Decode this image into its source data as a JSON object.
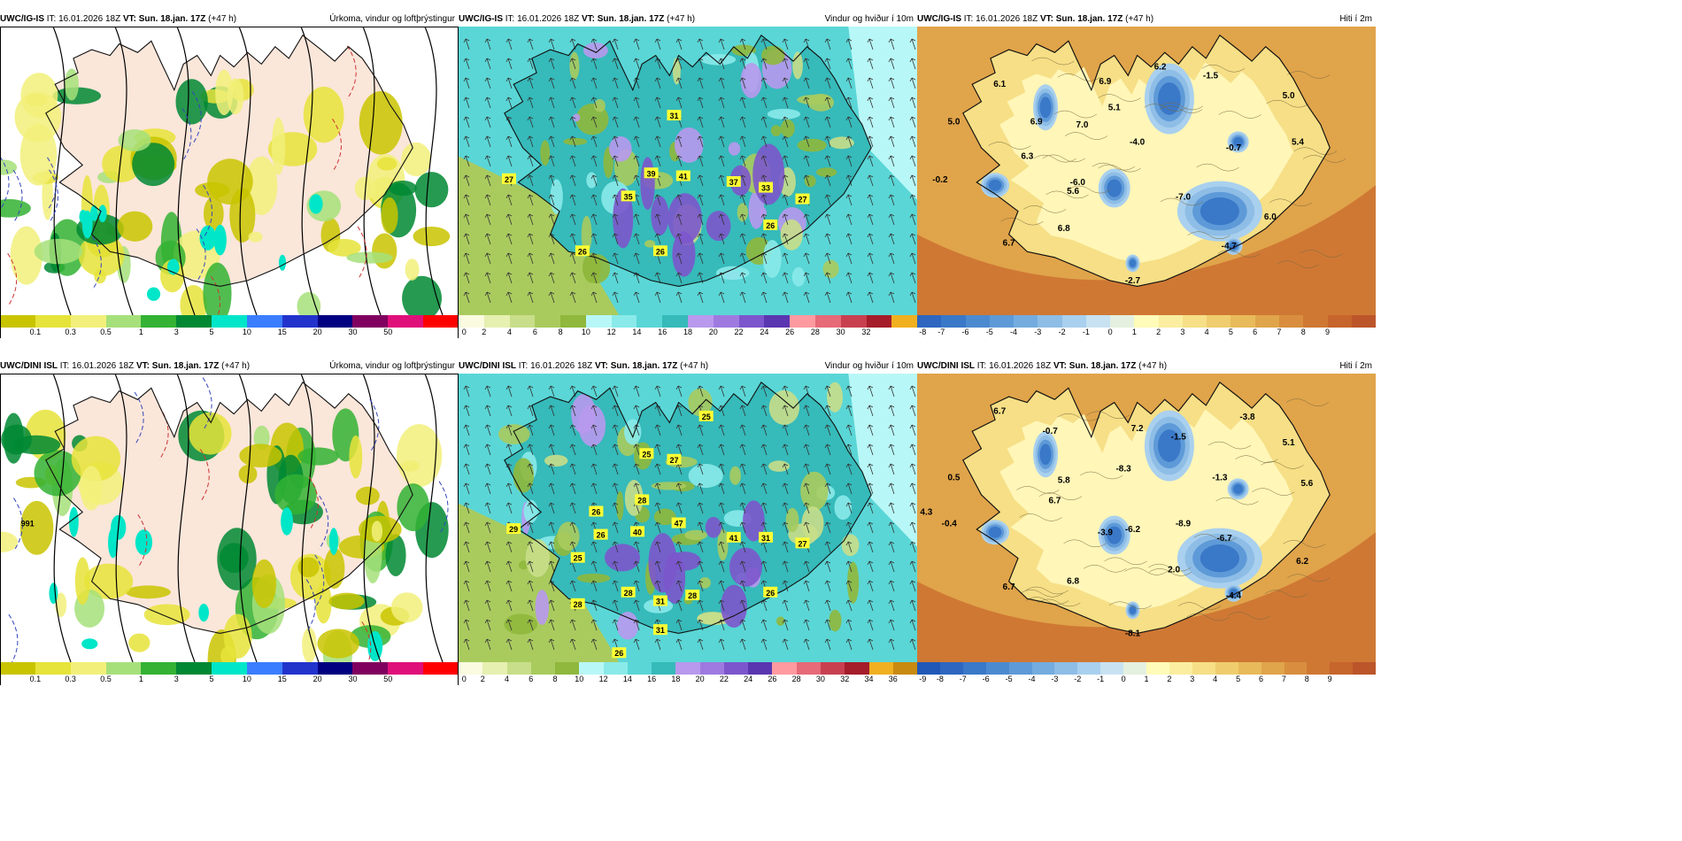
{
  "rows": [
    {
      "model": "UWC/IG-IS",
      "it": "IT: 16.01.2026 18Z",
      "vt": "VT: Sun. 18.jan. 17Z",
      "lead": "(+47 h)",
      "panels": [
        {
          "title": "Úrkoma, vindur og loftþrýstingur",
          "ticks": [
            "0.1",
            "0.3",
            "0.5",
            "1",
            "3",
            "5",
            "10",
            "15",
            "20",
            "30",
            "50"
          ],
          "colors": [
            "#c9c400",
            "#e6e33a",
            "#f2f07a",
            "#a6e07a",
            "#33b233",
            "#008833",
            "#00e6c8",
            "#3b7dff",
            "#2233cc",
            "#000080",
            "#800060",
            "#e0107a",
            "#ff0000"
          ],
          "labels": []
        },
        {
          "title": "Vindur og hviður í 10m",
          "ticks": [
            "0",
            "2",
            "4",
            "6",
            "8",
            "10",
            "12",
            "14",
            "16",
            "18",
            "20",
            "22",
            "24",
            "26",
            "28",
            "30",
            "32"
          ],
          "colors": [
            "#fafbe0",
            "#e6f0b0",
            "#c8de8a",
            "#a9cb5e",
            "#8fb83c",
            "#b8f7f7",
            "#8aeaea",
            "#5ad6d6",
            "#36baba",
            "#b899ee",
            "#9e7ae0",
            "#7c56cc",
            "#5a36b0",
            "#ff9aa0",
            "#e66a78",
            "#c84050",
            "#a51c2a",
            "#f0b020"
          ],
          "labels": [
            "27",
            "31",
            "39",
            "41",
            "35",
            "37",
            "33",
            "27",
            "26",
            "26",
            "26"
          ]
        },
        {
          "title": "Hiti í 2m",
          "ticks": [
            "-8",
            "-7",
            "-6",
            "-5",
            "-4",
            "-3",
            "-2",
            "-1",
            "0",
            "1",
            "2",
            "3",
            "4",
            "5",
            "6",
            "7",
            "8",
            "9"
          ],
          "colors": [
            "#2e66c0",
            "#3a78c8",
            "#4c8ad0",
            "#5e9ad8",
            "#74acdf",
            "#8ebde6",
            "#a9d0ee",
            "#c8e2f2",
            "#e4f0e0",
            "#fffbb8",
            "#fbeea0",
            "#f6df86",
            "#efcd6e",
            "#e8ba5a",
            "#e0a44a",
            "#d88e3e",
            "#cf7834",
            "#c6652c",
            "#bc552a"
          ],
          "labels": [
            "6.1",
            "6.2",
            "6.9",
            "-1.5",
            "5.0",
            "6.9",
            "5.1",
            "5.0",
            "7.0",
            "-4.0",
            "-0.7",
            "5.4",
            "6.3",
            "-0.2",
            "-6.0",
            "5.6",
            "-7.0",
            "6.0",
            "6.8",
            "6.7",
            "-4.7",
            "-2.7"
          ]
        }
      ]
    },
    {
      "model": "UWC/DINI ISL",
      "it": "IT: 16.01.2026 18Z",
      "vt": "VT: Sun. 18.jan. 17Z",
      "lead": "(+47 h)",
      "panels": [
        {
          "title": "Úrkoma, vindur og loftþrýstingur",
          "ticks": [
            "0.1",
            "0.3",
            "0.5",
            "1",
            "3",
            "5",
            "10",
            "15",
            "20",
            "30",
            "50"
          ],
          "colors": [
            "#c9c400",
            "#e6e33a",
            "#f2f07a",
            "#a6e07a",
            "#33b233",
            "#008833",
            "#00e6c8",
            "#3b7dff",
            "#2233cc",
            "#000080",
            "#800060",
            "#e0107a",
            "#ff0000"
          ],
          "labels": [
            "991"
          ]
        },
        {
          "title": "Vindur og hviður í 10m",
          "ticks": [
            "0",
            "2",
            "4",
            "6",
            "8",
            "10",
            "12",
            "14",
            "16",
            "18",
            "20",
            "22",
            "24",
            "26",
            "28",
            "30",
            "32",
            "34",
            "36"
          ],
          "colors": [
            "#fafbe0",
            "#e6f0b0",
            "#c8de8a",
            "#a9cb5e",
            "#8fb83c",
            "#b8f7f7",
            "#8aeaea",
            "#5ad6d6",
            "#36baba",
            "#b899ee",
            "#9e7ae0",
            "#7c56cc",
            "#5a36b0",
            "#ff9aa0",
            "#e66a78",
            "#c84050",
            "#a51c2a",
            "#f0b020",
            "#c88a10"
          ],
          "labels": [
            "25",
            "25",
            "27",
            "26",
            "29",
            "28",
            "40",
            "47",
            "26",
            "25",
            "41",
            "31",
            "27",
            "28",
            "31",
            "28",
            "26",
            "28",
            "31",
            "26"
          ]
        },
        {
          "title": "Hiti í 2m",
          "ticks": [
            "-9",
            "-8",
            "-7",
            "-6",
            "-5",
            "-4",
            "-3",
            "-2",
            "-1",
            "0",
            "1",
            "2",
            "3",
            "4",
            "5",
            "6",
            "7",
            "8",
            "9"
          ],
          "colors": [
            "#2058b8",
            "#2e66c0",
            "#3a78c8",
            "#4c8ad0",
            "#5e9ad8",
            "#74acdf",
            "#8ebde6",
            "#a9d0ee",
            "#c8e2f2",
            "#e4f0e0",
            "#fffbb8",
            "#fbeea0",
            "#f6df86",
            "#efcd6e",
            "#e8ba5a",
            "#e0a44a",
            "#d88e3e",
            "#cf7834",
            "#c6652c",
            "#bc552a"
          ],
          "labels": [
            "6.7",
            "-0.7",
            "7.2",
            "-3.8",
            "-1.5",
            "5.1",
            "-8.3",
            "0.5",
            "5.8",
            "-1.3",
            "5.6",
            "6.7",
            "4.3",
            "-0.4",
            "-3.9",
            "-6.2",
            "-8.9",
            "-6.7",
            "6.2",
            "2.0",
            "6.7",
            "6.8",
            "-4.4",
            "-8.1"
          ]
        }
      ]
    }
  ]
}
